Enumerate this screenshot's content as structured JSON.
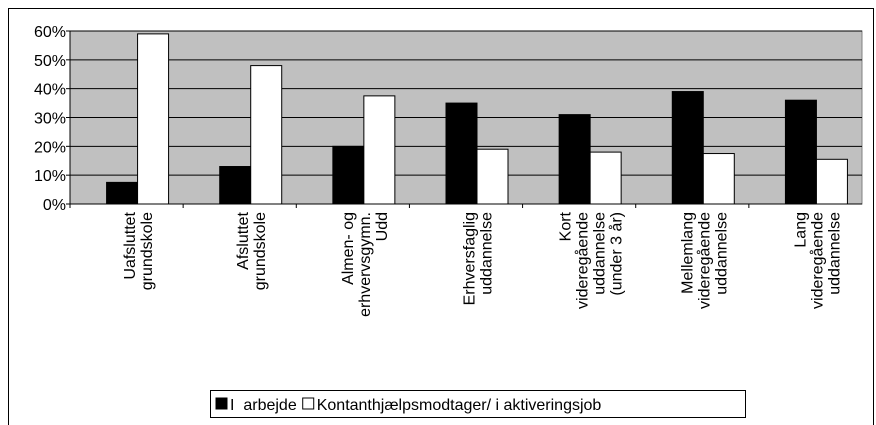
{
  "chart_data": {
    "type": "bar",
    "categories": [
      "Uafsluttet\ngrundskole",
      "Afsluttet\ngrundskole",
      "Almen- og\nerhvervsgymn.\nUdd",
      "Erhversfaglig\nuddannelse",
      "Kort\nvideregående\nuddannelse\n(under 3 år)",
      "Mellemlang\nvideregående\nuddannelse",
      "Lang\nvideregående\nuddannelse"
    ],
    "series": [
      {
        "name": "I  arbejde",
        "color": "#000000",
        "values": [
          7.5,
          13,
          20,
          35,
          31,
          39,
          36
        ]
      },
      {
        "name": "Kontanthjælpsmodtager/ i aktiveringsjob",
        "color": "#ffffff",
        "values": [
          59,
          48,
          37.5,
          19,
          18,
          17.5,
          15.5
        ]
      }
    ],
    "ylim": [
      0,
      60
    ],
    "yticks": [
      {
        "value": 0,
        "label": "0%"
      },
      {
        "value": 10,
        "label": "10%"
      },
      {
        "value": 20,
        "label": "20%"
      },
      {
        "value": 30,
        "label": "30%"
      },
      {
        "value": 40,
        "label": "40%"
      },
      {
        "value": 50,
        "label": "50%"
      },
      {
        "value": 60,
        "label": "60%"
      }
    ],
    "grid": true,
    "background": "#c0c0c0",
    "legend": "bottom"
  }
}
